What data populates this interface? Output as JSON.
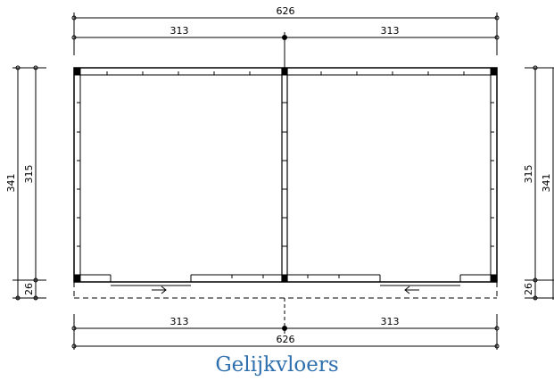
{
  "title": "Gelijkvloers",
  "dimensions": {
    "top_total": "626",
    "top_left": "313",
    "top_right": "313",
    "bottom_left": "313",
    "bottom_right": "313",
    "bottom_total": "626",
    "left_outer": "341",
    "left_inner": "315",
    "left_small": "26",
    "right_inner": "315",
    "right_outer": "341",
    "right_small": "26"
  },
  "colors": {
    "title": "#2e6fad",
    "lines": "#000000"
  },
  "icons": [
    "arrow-right-icon",
    "arrow-left-icon"
  ]
}
